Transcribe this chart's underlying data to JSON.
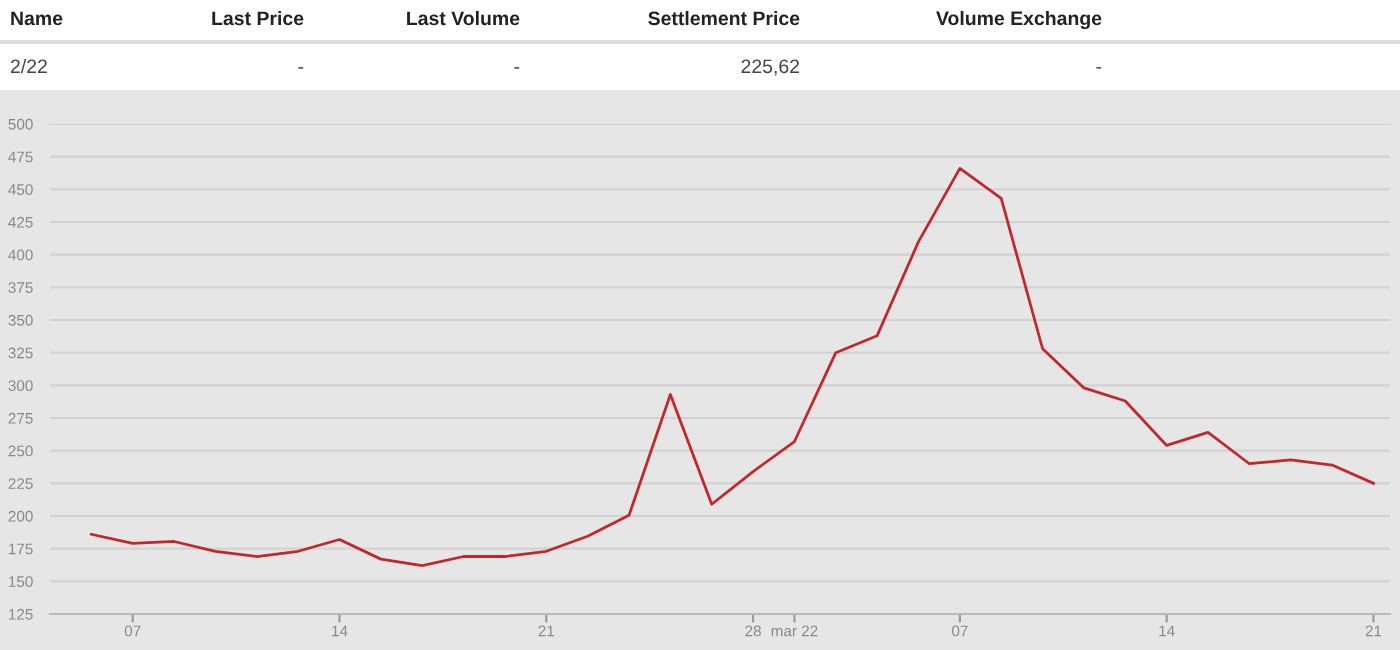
{
  "chart_data": {
    "type": "line",
    "annotations": [
      "Name",
      "Last Price",
      "Last Volume",
      "Settlement Price",
      "Volume Exchange",
      "2/22",
      "-",
      "-",
      "225,62",
      "-"
    ],
    "categories": [
      null,
      "07",
      null,
      null,
      null,
      null,
      "14",
      null,
      null,
      null,
      null,
      "21",
      null,
      null,
      null,
      null,
      "28",
      "mar 22",
      null,
      null,
      null,
      "07",
      null,
      null,
      null,
      null,
      "14",
      null,
      null,
      null,
      null,
      "21"
    ],
    "series": [
      {
        "color": "#c0282d",
        "values": [
          186,
          179,
          180.5,
          173,
          169,
          173,
          182,
          167,
          162,
          169,
          169,
          173,
          184.5,
          200.5,
          293,
          209,
          234,
          257,
          325,
          338,
          410,
          466,
          443,
          328,
          298,
          288,
          254,
          264,
          240,
          243,
          239,
          225
        ]
      }
    ],
    "ylim": [
      125,
      500
    ],
    "yticks": [
      125,
      150,
      175,
      200,
      225,
      250,
      275,
      300,
      325,
      350,
      375,
      400,
      425,
      450,
      475,
      500
    ],
    "grid": "y",
    "legend": false,
    "marker": "none",
    "line_style": "solid"
  }
}
